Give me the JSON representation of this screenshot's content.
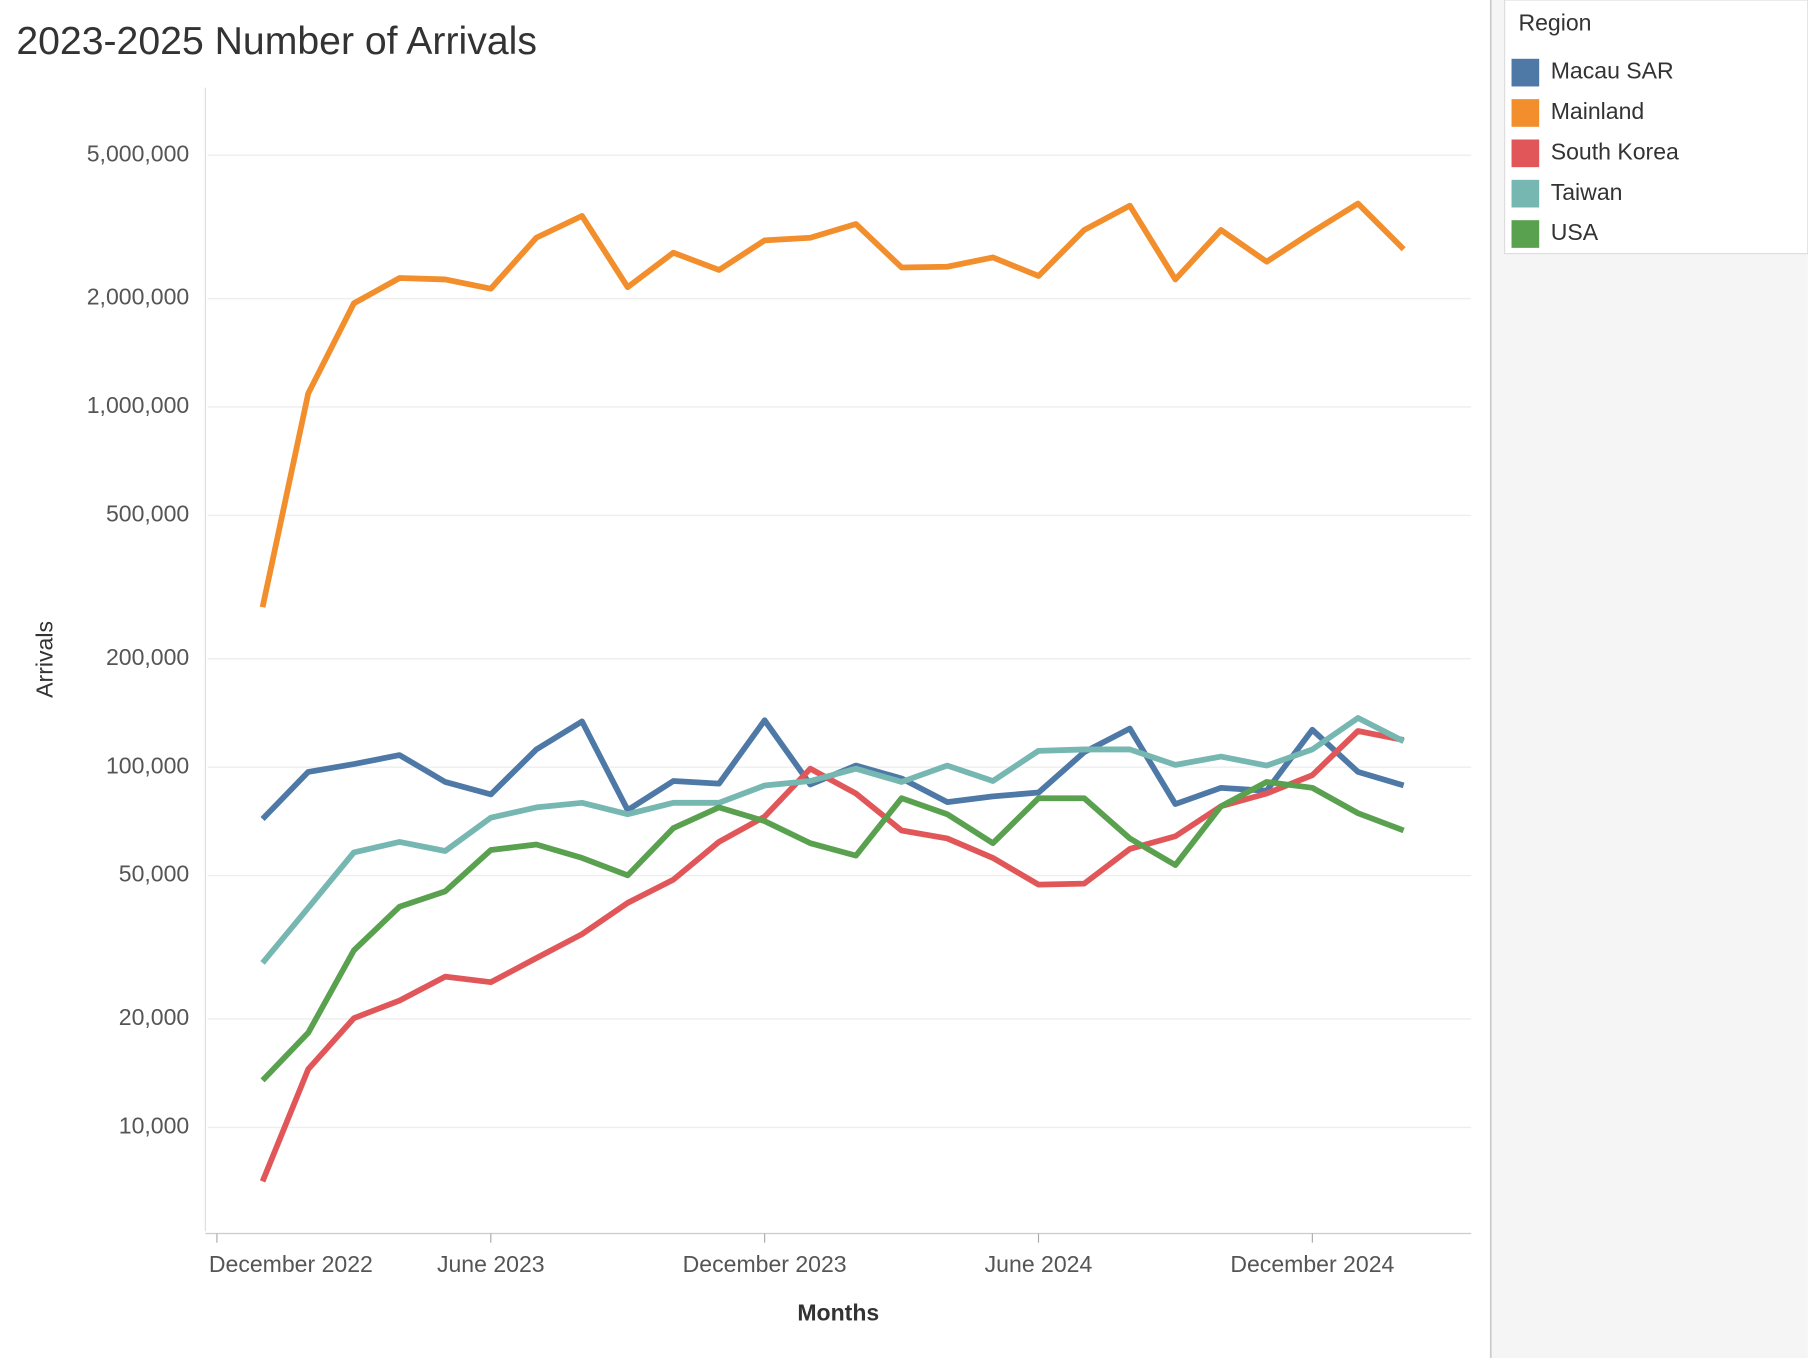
{
  "chart_data": {
    "type": "line",
    "title": "2023-2025 Number of Arrivals",
    "x_label": "Months",
    "y_label": "Arrivals",
    "legend_title": "Region",
    "legend": "right",
    "log_scale": true,
    "grid": true,
    "x": [
      "2023-01",
      "2023-02",
      "2023-03",
      "2023-04",
      "2023-05",
      "2023-06",
      "2023-07",
      "2023-08",
      "2023-09",
      "2023-10",
      "2023-11",
      "2023-12",
      "2024-01",
      "2024-02",
      "2024-03",
      "2024-04",
      "2024-05",
      "2024-06",
      "2024-07",
      "2024-08",
      "2024-09",
      "2024-10",
      "2024-11",
      "2024-12",
      "2025-01",
      "2025-02"
    ],
    "xlim": [
      "2022-12",
      "2025-03"
    ],
    "xticks": [
      {
        "value": "2022-12",
        "label": "December 2022"
      },
      {
        "value": "2023-06",
        "label": "June 2023"
      },
      {
        "value": "2023-12",
        "label": "December 2023"
      },
      {
        "value": "2024-06",
        "label": "June 2024"
      },
      {
        "value": "2024-12",
        "label": "December 2024"
      }
    ],
    "ylim": [
      5150,
      7700000
    ],
    "yticks": [
      {
        "value": 10000,
        "label": "10,000"
      },
      {
        "value": 20000,
        "label": "20,000"
      },
      {
        "value": 50000,
        "label": "50,000"
      },
      {
        "value": 100000,
        "label": "100,000"
      },
      {
        "value": 200000,
        "label": "200,000"
      },
      {
        "value": 500000,
        "label": "500,000"
      },
      {
        "value": 1000000,
        "label": "1,000,000"
      },
      {
        "value": 2000000,
        "label": "2,000,000"
      },
      {
        "value": 5000000,
        "label": "5,000,000"
      }
    ],
    "series": [
      {
        "name": "Macau SAR",
        "color": "#4e79a7",
        "values": [
          71800,
          97000,
          102000,
          108000,
          91000,
          84000,
          112000,
          134000,
          76000,
          91500,
          90000,
          135000,
          89500,
          101000,
          93000,
          80000,
          83000,
          85000,
          110000,
          128000,
          79000,
          87600,
          86000,
          127000,
          97000,
          89000
        ]
      },
      {
        "name": "Mainland",
        "color": "#f28e2b",
        "values": [
          278000,
          1090000,
          1940000,
          2280000,
          2260000,
          2130000,
          2950000,
          3390000,
          2150000,
          2680000,
          2400000,
          2900000,
          2950000,
          3220000,
          2440000,
          2450000,
          2600000,
          2310000,
          3100000,
          3620000,
          2260000,
          3100000,
          2530000,
          3060000,
          3670000,
          2740000
        ]
      },
      {
        "name": "South Korea",
        "color": "#e15759",
        "values": [
          7080,
          14500,
          20100,
          22500,
          26200,
          25300,
          29500,
          34400,
          42000,
          48700,
          62000,
          72900,
          99000,
          84500,
          66700,
          63400,
          56000,
          47200,
          47500,
          59300,
          64300,
          77900,
          84500,
          95000,
          126000,
          119000
        ]
      },
      {
        "name": "Taiwan",
        "color": "#76b7b2",
        "values": [
          28600,
          40700,
          58000,
          62000,
          58500,
          72400,
          77300,
          79600,
          74000,
          79600,
          79600,
          88900,
          91500,
          99000,
          91000,
          101000,
          91500,
          111000,
          112000,
          112000,
          101500,
          107000,
          101000,
          112000,
          137000,
          118000
        ]
      },
      {
        "name": "USA",
        "color": "#59a14f",
        "values": [
          13500,
          18300,
          31000,
          41000,
          45200,
          58900,
          61000,
          56000,
          50100,
          67700,
          77300,
          70800,
          61500,
          56800,
          82000,
          74000,
          61500,
          82000,
          82000,
          63400,
          53500,
          77900,
          91000,
          87600,
          74500,
          66700
        ]
      }
    ]
  }
}
